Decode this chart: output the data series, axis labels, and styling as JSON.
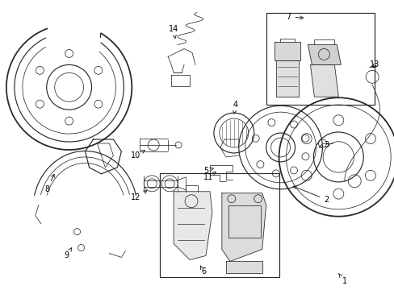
{
  "bg_color": "#ffffff",
  "line_color": "#2a2a2a",
  "text_color": "#000000",
  "fig_width": 4.89,
  "fig_height": 3.6,
  "dpi": 100,
  "lw_thin": 0.55,
  "lw_med": 0.85,
  "lw_thick": 1.3
}
